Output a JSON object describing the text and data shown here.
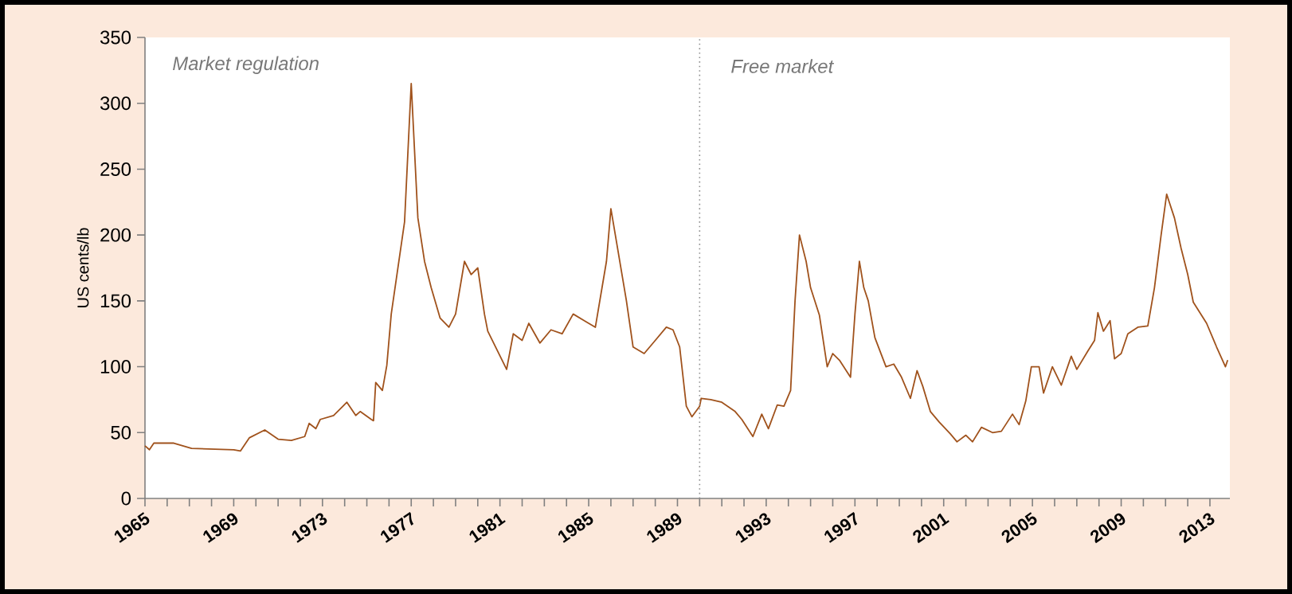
{
  "chart_data": {
    "type": "line",
    "ylabel": "US cents/lb",
    "annotations": [
      "Market regulation",
      "Free market"
    ],
    "x": [
      1965.0,
      1965.2,
      1965.4,
      1966.3,
      1967.1,
      1969.0,
      1969.3,
      1969.7,
      1970.4,
      1971.0,
      1971.6,
      1972.2,
      1972.4,
      1972.7,
      1972.9,
      1973.5,
      1974.1,
      1974.5,
      1974.7,
      1975.2,
      1975.3,
      1975.4,
      1975.7,
      1975.9,
      1976.1,
      1976.7,
      1977.0,
      1977.3,
      1977.6,
      1977.9,
      1978.3,
      1978.7,
      1979.0,
      1979.4,
      1979.7,
      1980.0,
      1980.3,
      1980.45,
      1981.3,
      1981.6,
      1982.0,
      1982.3,
      1982.8,
      1983.3,
      1983.8,
      1984.3,
      1984.8,
      1985.3,
      1985.8,
      1986.0,
      1986.3,
      1986.7,
      1987.0,
      1987.5,
      1988.0,
      1988.5,
      1988.8,
      1989.1,
      1989.4,
      1989.65,
      1990.0,
      1990.07,
      1990.5,
      1991.0,
      1991.6,
      1991.9,
      1992.4,
      1992.8,
      1993.1,
      1993.5,
      1993.8,
      1994.1,
      1994.3,
      1994.5,
      1994.8,
      1995.0,
      1995.4,
      1995.75,
      1996.0,
      1996.3,
      1996.8,
      1997.0,
      1997.2,
      1997.4,
      1997.6,
      1997.9,
      1998.4,
      1998.75,
      1999.1,
      1999.5,
      1999.8,
      2000.06,
      2000.4,
      2000.8,
      2001.3,
      2001.6,
      2002.0,
      2002.3,
      2002.7,
      2003.2,
      2003.6,
      2004.1,
      2004.4,
      2004.7,
      2004.95,
      2005.3,
      2005.5,
      2005.9,
      2006.3,
      2006.75,
      2007.0,
      2007.5,
      2007.8,
      2007.95,
      2008.2,
      2008.5,
      2008.7,
      2009.0,
      2009.3,
      2009.75,
      2010.2,
      2010.5,
      2010.8,
      2011.05,
      2011.4,
      2011.7,
      2012.0,
      2012.25,
      2012.85,
      2013.3,
      2013.7,
      2013.8
    ],
    "series": [
      {
        "color": "#a0521c",
        "values": [
          40,
          37,
          42,
          42,
          38,
          37,
          36,
          46,
          52,
          45,
          44,
          47,
          57,
          53,
          60,
          63,
          73,
          63,
          66,
          60,
          59,
          88,
          82,
          101,
          140,
          210,
          315,
          213,
          180,
          160,
          137,
          130,
          140,
          180,
          170,
          175,
          140,
          127,
          98,
          125,
          120,
          133,
          118,
          128,
          125,
          140,
          135,
          130,
          180,
          220,
          190,
          150,
          115,
          110,
          120,
          130,
          128,
          115,
          70,
          62,
          70,
          76,
          75,
          73,
          66,
          60,
          47,
          64,
          53,
          71,
          70,
          82,
          150,
          200,
          180,
          160,
          139,
          100,
          110,
          105,
          92,
          140,
          180,
          160,
          150,
          122,
          100,
          102,
          92,
          76,
          97,
          85,
          66,
          58,
          49,
          43,
          48,
          43,
          54,
          50,
          51,
          64,
          56,
          74,
          100,
          100,
          80,
          100,
          86,
          108,
          98,
          112,
          120,
          141,
          127,
          135,
          106,
          110,
          125,
          130,
          131,
          160,
          200,
          231,
          213,
          190,
          170,
          149,
          133,
          115,
          100,
          105
        ]
      }
    ],
    "xlim": [
      1965,
      2013.9
    ],
    "xticks": [
      1965,
      {
        "value": 1966,
        "label": null
      },
      {
        "value": 1967,
        "label": null
      },
      {
        "value": 1968,
        "label": null
      },
      1969,
      {
        "value": 1970,
        "label": null
      },
      {
        "value": 1971,
        "label": null
      },
      {
        "value": 1972,
        "label": null
      },
      1973,
      {
        "value": 1974,
        "label": null
      },
      {
        "value": 1975,
        "label": null
      },
      {
        "value": 1976,
        "label": null
      },
      1977,
      {
        "value": 1978,
        "label": null
      },
      {
        "value": 1979,
        "label": null
      },
      {
        "value": 1980,
        "label": null
      },
      1981,
      {
        "value": 1982,
        "label": null
      },
      {
        "value": 1983,
        "label": null
      },
      {
        "value": 1984,
        "label": null
      },
      1985,
      {
        "value": 1986,
        "label": null
      },
      {
        "value": 1987,
        "label": null
      },
      {
        "value": 1988,
        "label": null
      },
      1989,
      {
        "value": 1990,
        "label": null
      },
      {
        "value": 1991,
        "label": null
      },
      {
        "value": 1992,
        "label": null
      },
      1993,
      {
        "value": 1994,
        "label": null
      },
      {
        "value": 1995,
        "label": null
      },
      {
        "value": 1996,
        "label": null
      },
      1997,
      {
        "value": 1998,
        "label": null
      },
      {
        "value": 1999,
        "label": null
      },
      {
        "value": 2000,
        "label": null
      },
      2001,
      {
        "value": 2002,
        "label": null
      },
      {
        "value": 2003,
        "label": null
      },
      {
        "value": 2004,
        "label": null
      },
      2005,
      {
        "value": 2006,
        "label": null
      },
      {
        "value": 2007,
        "label": null
      },
      {
        "value": 2008,
        "label": null
      },
      2009,
      {
        "value": 2010,
        "label": null
      },
      {
        "value": 2011,
        "label": null
      },
      {
        "value": 2012,
        "label": null
      },
      2013
    ],
    "ylim": [
      0,
      350
    ],
    "yticks": [
      0,
      50,
      100,
      150,
      200,
      250,
      300,
      350
    ],
    "ref_lines": [
      {
        "axis": "x",
        "value": 1990,
        "color": "#909090",
        "line_style": "dotted"
      }
    ],
    "marker": "none",
    "grid": false
  }
}
